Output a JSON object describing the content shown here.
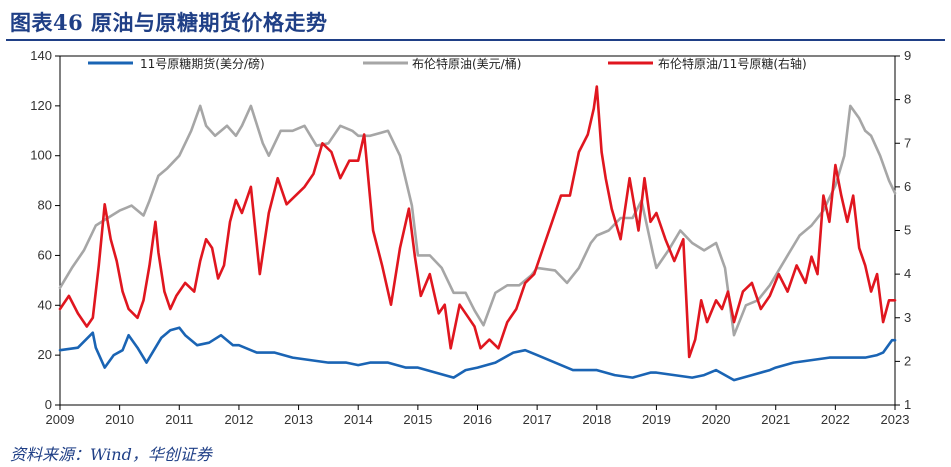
{
  "title": "图表46 原油与原糖期货价格走势",
  "source": "资料来源：Wind，华创证券",
  "colors": {
    "title": "#1f3f86",
    "sugar": "#1a64b4",
    "brent": "#a6a6a6",
    "ratio": "#e0161f"
  },
  "chart_data": {
    "type": "line",
    "title": "图表46 原油与原糖期货价格走势",
    "x_ticks": [
      "2009",
      "2010",
      "2011",
      "2012",
      "2013",
      "2014",
      "2015",
      "2016",
      "2017",
      "2018",
      "2019",
      "2020",
      "2021",
      "2022",
      "2023"
    ],
    "xlim": [
      2009.0,
      2023.0
    ],
    "y_left": {
      "ticks": [
        "0",
        "20",
        "40",
        "60",
        "80",
        "100",
        "120",
        "140"
      ],
      "lim": [
        0,
        140
      ]
    },
    "y_right": {
      "ticks": [
        "1",
        "2",
        "3",
        "4",
        "5",
        "6",
        "7",
        "8",
        "9"
      ],
      "lim": [
        1,
        9
      ]
    },
    "grid": false,
    "legend_position": "top",
    "series": [
      {
        "name": "11号原糖期货(美分/磅)",
        "axis": "left",
        "color": "#1a64b4",
        "x": [
          2009.0,
          2009.3,
          2009.55,
          2009.6,
          2009.75,
          2009.9,
          2010.05,
          2010.15,
          2010.3,
          2010.45,
          2010.7,
          2010.85,
          2011.0,
          2011.1,
          2011.3,
          2011.5,
          2011.7,
          2011.9,
          2012.0,
          2012.3,
          2012.6,
          2012.9,
          2013.2,
          2013.5,
          2013.8,
          2014.0,
          2014.2,
          2014.5,
          2014.8,
          2015.0,
          2015.3,
          2015.6,
          2015.8,
          2016.0,
          2016.3,
          2016.6,
          2016.8,
          2017.0,
          2017.3,
          2017.6,
          2017.8,
          2018.0,
          2018.3,
          2018.6,
          2018.9,
          2019.0,
          2019.3,
          2019.6,
          2019.8,
          2020.0,
          2020.3,
          2020.6,
          2020.9,
          2021.0,
          2021.3,
          2021.6,
          2021.9,
          2022.0,
          2022.3,
          2022.5,
          2022.7,
          2022.8,
          2022.95,
          2023.0
        ],
        "y": [
          22,
          23,
          29,
          23,
          15,
          20,
          22,
          28,
          23,
          17,
          27,
          30,
          31,
          28,
          24,
          25,
          28,
          24,
          24,
          21,
          21,
          19,
          18,
          17,
          17,
          16,
          17,
          17,
          15,
          15,
          13,
          11,
          14,
          15,
          17,
          21,
          22,
          20,
          17,
          14,
          14,
          14,
          12,
          11,
          13,
          13,
          12,
          11,
          12,
          14,
          10,
          12,
          14,
          15,
          17,
          18,
          19,
          19,
          19,
          19,
          20,
          21,
          26,
          26
        ]
      },
      {
        "name": "布伦特原油(美元/桶)",
        "axis": "left",
        "color": "#a6a6a6",
        "x": [
          2009.0,
          2009.2,
          2009.4,
          2009.6,
          2009.8,
          2010.0,
          2010.2,
          2010.4,
          2010.5,
          2010.65,
          2010.8,
          2011.0,
          2011.2,
          2011.35,
          2011.45,
          2011.6,
          2011.8,
          2011.95,
          2012.05,
          2012.2,
          2012.4,
          2012.5,
          2012.7,
          2012.9,
          2013.1,
          2013.3,
          2013.5,
          2013.7,
          2013.9,
          2014.0,
          2014.2,
          2014.5,
          2014.7,
          2014.9,
          2015.0,
          2015.2,
          2015.4,
          2015.6,
          2015.8,
          2015.95,
          2016.1,
          2016.3,
          2016.5,
          2016.7,
          2016.9,
          2017.0,
          2017.3,
          2017.5,
          2017.7,
          2017.9,
          2018.0,
          2018.2,
          2018.4,
          2018.6,
          2018.75,
          2018.95,
          2019.0,
          2019.2,
          2019.4,
          2019.6,
          2019.8,
          2020.0,
          2020.15,
          2020.3,
          2020.5,
          2020.7,
          2020.9,
          2021.0,
          2021.2,
          2021.4,
          2021.6,
          2021.8,
          2022.0,
          2022.15,
          2022.25,
          2022.4,
          2022.5,
          2022.6,
          2022.75,
          2022.9,
          2023.0
        ],
        "y": [
          47,
          55,
          62,
          72,
          75,
          78,
          80,
          76,
          82,
          92,
          95,
          100,
          110,
          120,
          112,
          108,
          112,
          108,
          112,
          120,
          105,
          100,
          110,
          110,
          112,
          104,
          105,
          112,
          110,
          108,
          108,
          110,
          100,
          80,
          60,
          60,
          55,
          45,
          45,
          38,
          32,
          45,
          48,
          48,
          52,
          55,
          54,
          49,
          55,
          65,
          68,
          70,
          75,
          75,
          82,
          60,
          55,
          62,
          70,
          65,
          62,
          65,
          55,
          28,
          40,
          42,
          48,
          52,
          60,
          68,
          72,
          78,
          88,
          100,
          120,
          115,
          110,
          108,
          100,
          90,
          85
        ]
      },
      {
        "name": "布伦特原油/11号原糖(右轴)",
        "axis": "right",
        "color": "#e0161f",
        "x": [
          2009.0,
          2009.15,
          2009.3,
          2009.45,
          2009.55,
          2009.65,
          2009.75,
          2009.85,
          2009.95,
          2010.05,
          2010.15,
          2010.3,
          2010.4,
          2010.5,
          2010.6,
          2010.65,
          2010.75,
          2010.85,
          2010.95,
          2011.1,
          2011.25,
          2011.35,
          2011.45,
          2011.55,
          2011.65,
          2011.75,
          2011.85,
          2011.95,
          2012.05,
          2012.2,
          2012.35,
          2012.5,
          2012.65,
          2012.8,
          2012.95,
          2013.1,
          2013.25,
          2013.4,
          2013.55,
          2013.7,
          2013.85,
          2014.0,
          2014.1,
          2014.25,
          2014.4,
          2014.55,
          2014.7,
          2014.85,
          2014.95,
          2015.05,
          2015.2,
          2015.35,
          2015.45,
          2015.55,
          2015.7,
          2015.85,
          2015.95,
          2016.05,
          2016.2,
          2016.35,
          2016.5,
          2016.65,
          2016.8,
          2016.95,
          2017.1,
          2017.25,
          2017.4,
          2017.55,
          2017.7,
          2017.85,
          2017.95,
          2018.0,
          2018.08,
          2018.15,
          2018.25,
          2018.4,
          2018.55,
          2018.7,
          2018.8,
          2018.9,
          2019.0,
          2019.15,
          2019.3,
          2019.45,
          2019.55,
          2019.65,
          2019.75,
          2019.85,
          2020.0,
          2020.1,
          2020.2,
          2020.3,
          2020.45,
          2020.6,
          2020.75,
          2020.9,
          2021.05,
          2021.2,
          2021.35,
          2021.5,
          2021.6,
          2021.7,
          2021.8,
          2021.9,
          2022.0,
          2022.1,
          2022.2,
          2022.3,
          2022.4,
          2022.5,
          2022.6,
          2022.7,
          2022.8,
          2022.9,
          2023.0
        ],
        "y": [
          3.2,
          3.5,
          3.1,
          2.8,
          3.0,
          4.2,
          5.6,
          4.8,
          4.3,
          3.6,
          3.2,
          3.0,
          3.4,
          4.2,
          5.2,
          4.5,
          3.6,
          3.2,
          3.5,
          3.8,
          3.6,
          4.3,
          4.8,
          4.6,
          3.9,
          4.2,
          5.2,
          5.7,
          5.4,
          6.0,
          4.0,
          5.4,
          6.2,
          5.6,
          5.8,
          6.0,
          6.3,
          7.0,
          6.8,
          6.2,
          6.6,
          6.6,
          7.2,
          5.0,
          4.2,
          3.3,
          4.6,
          5.5,
          4.4,
          3.5,
          4.0,
          3.1,
          3.3,
          2.3,
          3.3,
          3.0,
          2.8,
          2.3,
          2.5,
          2.3,
          2.9,
          3.2,
          3.8,
          4.0,
          4.6,
          5.2,
          5.8,
          5.8,
          6.8,
          7.2,
          7.8,
          8.3,
          6.8,
          6.2,
          5.5,
          4.8,
          6.2,
          5.0,
          6.2,
          5.2,
          5.4,
          4.8,
          4.3,
          4.8,
          2.1,
          2.5,
          3.4,
          2.9,
          3.4,
          3.2,
          3.6,
          2.9,
          3.6,
          3.8,
          3.2,
          3.5,
          4.0,
          3.6,
          4.2,
          3.8,
          4.4,
          4.0,
          5.8,
          5.2,
          6.5,
          5.8,
          5.2,
          5.8,
          4.6,
          4.2,
          3.6,
          4.0,
          2.9,
          3.4,
          3.4
        ]
      }
    ]
  }
}
